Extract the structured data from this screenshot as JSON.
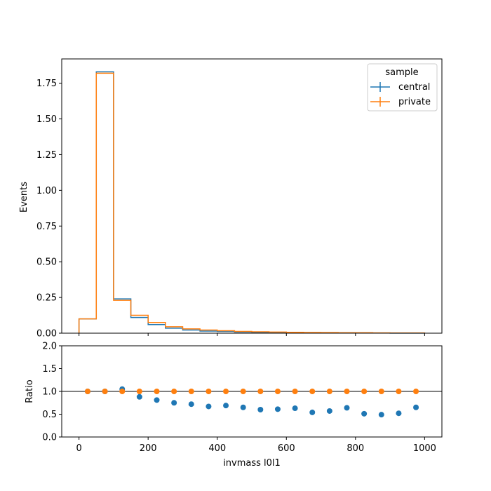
{
  "colors": {
    "central": "#1f77b4",
    "private": "#ff7f0e"
  },
  "chart_data": [
    {
      "type": "line",
      "panel": "main",
      "step": true,
      "bin_edges": [
        0,
        50,
        100,
        150,
        200,
        250,
        300,
        350,
        400,
        450,
        500,
        550,
        600,
        650,
        700,
        750,
        800,
        850,
        900,
        950,
        1000
      ],
      "series": [
        {
          "name": "central",
          "values": [
            0.1,
            1.83,
            0.24,
            0.11,
            0.06,
            0.035,
            0.022,
            0.015,
            0.012,
            0.008,
            0.006,
            0.005,
            0.004,
            0.003,
            0.002,
            0.002,
            0.0015,
            0.001,
            0.0008,
            0.0005
          ]
        },
        {
          "name": "private",
          "values": [
            0.1,
            1.82,
            0.23,
            0.125,
            0.075,
            0.045,
            0.03,
            0.022,
            0.017,
            0.012,
            0.01,
            0.008,
            0.006,
            0.005,
            0.004,
            0.003,
            0.003,
            0.002,
            0.0015,
            0.001
          ]
        }
      ],
      "xlim": [
        -50,
        1050
      ],
      "ylim": [
        0,
        1.92
      ],
      "ylabel": "Events",
      "xlabel": "",
      "yticks": [
        "0.00",
        "0.25",
        "0.50",
        "0.75",
        "1.00",
        "1.25",
        "1.50",
        "1.75"
      ],
      "xticks": [
        0,
        200,
        400,
        600,
        800,
        1000
      ],
      "grid": false,
      "legend": {
        "title": "sample",
        "placement": "top-right",
        "entries": [
          "central",
          "private"
        ]
      }
    },
    {
      "type": "scatter",
      "panel": "ratio",
      "x": [
        25,
        75,
        125,
        175,
        225,
        275,
        325,
        375,
        425,
        475,
        525,
        575,
        625,
        675,
        725,
        775,
        825,
        875,
        925,
        975
      ],
      "series": [
        {
          "name": "central",
          "values": [
            1.0,
            1.0,
            1.05,
            0.88,
            0.81,
            0.75,
            0.72,
            0.67,
            0.69,
            0.65,
            0.6,
            0.61,
            0.63,
            0.54,
            0.57,
            0.64,
            0.51,
            0.49,
            0.52,
            0.65
          ]
        },
        {
          "name": "private",
          "values": [
            1.0,
            1.0,
            1.0,
            1.0,
            1.0,
            1.0,
            1.0,
            1.0,
            1.0,
            1.0,
            1.0,
            1.0,
            1.0,
            1.0,
            1.0,
            1.0,
            1.0,
            1.0,
            1.0,
            1.0
          ]
        }
      ],
      "reference_line": 1.0,
      "xlim": [
        -50,
        1050
      ],
      "ylim": [
        0,
        2.0
      ],
      "ylabel": "Ratio",
      "xlabel": "invmass l0l1",
      "yticks": [
        "0.0",
        "0.5",
        "1.0",
        "1.5",
        "2.0"
      ],
      "xticks": [
        "0",
        "200",
        "400",
        "600",
        "800",
        "1000"
      ],
      "grid": false
    }
  ]
}
